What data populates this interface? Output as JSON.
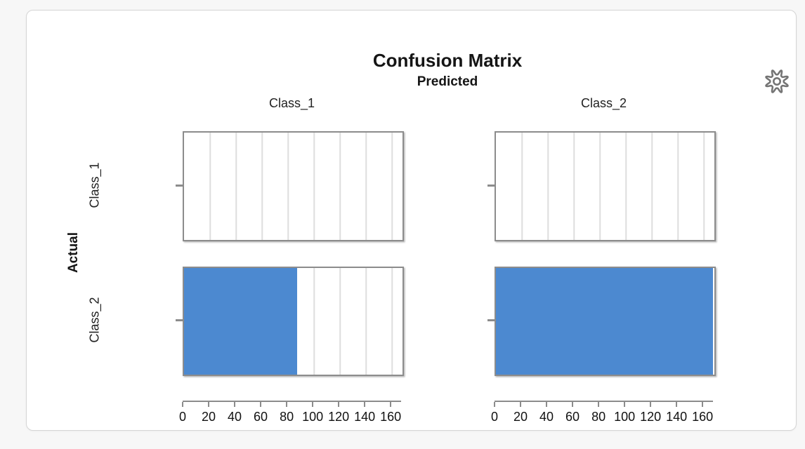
{
  "header": {
    "title": "Confusion Matrix",
    "x_axis_title": "Predicted",
    "y_axis_title": "Actual"
  },
  "icons": {
    "gear": "settings-gear"
  },
  "colors": {
    "bar_blue": "#4c89d0",
    "panel_border": "#8c8c8c",
    "gridline": "#dedede",
    "card_background": "#ffffff",
    "page_background": "#f7f7f7"
  },
  "chart_data": {
    "type": "bar",
    "orientation": "horizontal",
    "title": "Confusion Matrix",
    "x_axis_title": "Predicted",
    "y_axis_title": "Actual",
    "columns": [
      "Class_1",
      "Class_2"
    ],
    "rows": [
      "Class_1",
      "Class_2"
    ],
    "matrix": [
      [
        0,
        0
      ],
      [
        87,
        167
      ]
    ],
    "x_ticks": [
      0,
      20,
      40,
      60,
      80,
      100,
      120,
      140,
      160
    ],
    "x_axis_max": 168,
    "grid": true,
    "legend": "none",
    "bar_color": "#4c89d0"
  }
}
